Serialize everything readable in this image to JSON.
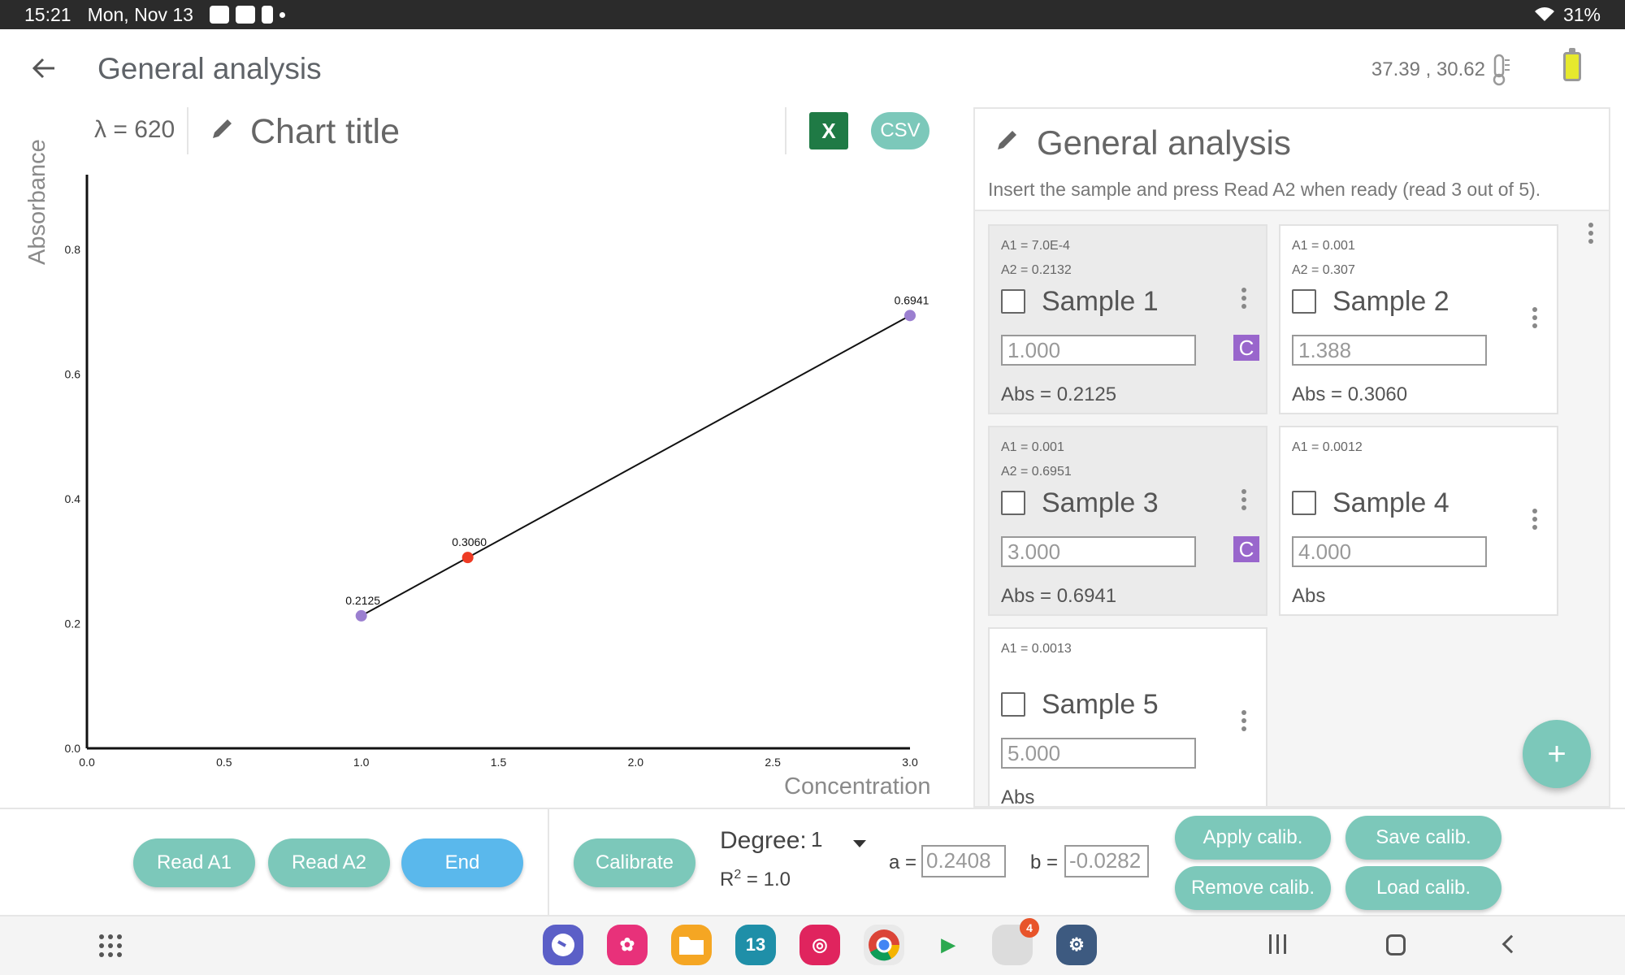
{
  "status_bar": {
    "time": "15:21",
    "date": "Mon, Nov 13",
    "battery": "31%",
    "icons": [
      "gallery-icon",
      "youtube-icon",
      "notification-icon"
    ]
  },
  "app_bar": {
    "title": "General analysis",
    "coords": "37.39 ,  30.62",
    "icons": [
      "back-arrow-icon",
      "thermometer-icon",
      "battery-icon"
    ]
  },
  "chart_header": {
    "lambda": "λ = 620",
    "title": "Chart title",
    "excel_label": "X",
    "csv_label": "CSV"
  },
  "chart_data": {
    "type": "scatter",
    "title": "",
    "xlabel": "Concentration",
    "ylabel": "Absorbance",
    "xlim": [
      0.0,
      3.0
    ],
    "ylim": [
      0.0,
      0.92
    ],
    "xticks": [
      "0.0",
      "0.5",
      "1.0",
      "1.5",
      "2.0",
      "2.5",
      "3.0"
    ],
    "yticks": [
      "0.0",
      "0.2",
      "0.4",
      "0.6",
      "0.8"
    ],
    "grid": false,
    "series": [
      {
        "x": [
          1.0,
          1.388,
          3.0
        ],
        "y": [
          0.2125,
          0.306,
          0.6941
        ],
        "labels": [
          "0.2125",
          "0.3060",
          "0.6941"
        ],
        "colors": [
          "#9b7fd0",
          "#ee3b24",
          "#9b7fd0"
        ]
      }
    ],
    "fit_line": {
      "x": [
        1.0,
        3.0
      ],
      "y": [
        0.2125,
        0.6941
      ],
      "color": "#111111"
    }
  },
  "panel": {
    "title": "General analysis",
    "subtitle": "Insert the sample and press Read A2 when ready (read 3 out of 5).",
    "samples": [
      {
        "a1": "A1 = 7.0E-4",
        "a2": "A2 = 0.2132",
        "name": "Sample 1",
        "conc": "1.000",
        "badge": "C",
        "abs": "Abs = 0.2125"
      },
      {
        "a1": "A1 = 0.001",
        "a2": "A2 = 0.307",
        "name": "Sample 2",
        "conc": "1.388",
        "badge": "",
        "abs": "Abs = 0.3060"
      },
      {
        "a1": "A1 = 0.001",
        "a2": "A2 = 0.6951",
        "name": "Sample 3",
        "conc": "3.000",
        "badge": "C",
        "abs": "Abs = 0.6941"
      },
      {
        "a1": "A1 = 0.0012",
        "a2": "",
        "name": "Sample 4",
        "conc": "4.000",
        "badge": "",
        "abs": "Abs"
      },
      {
        "a1": "A1 = 0.0013",
        "a2": "",
        "name": "Sample 5",
        "conc": "5.000",
        "badge": "",
        "abs": "Abs"
      }
    ],
    "fab_label": "+"
  },
  "toolbar": {
    "read_a1": "Read A1",
    "read_a2": "Read A2",
    "end": "End",
    "calibrate": "Calibrate",
    "degree_label": "Degree:",
    "degree_value": "1",
    "r2_prefix": "R",
    "r2_sup": "2",
    "r2_value": " = 1.0",
    "a_label": "a =",
    "a_value": "0.2408",
    "b_label": "b =",
    "b_value": "-0.0282",
    "apply_calib": "Apply calib.",
    "save_calib": "Save calib.",
    "remove_calib": "Remove calib.",
    "load_calib": "Load calib."
  },
  "nav_bar": {
    "dock": [
      {
        "name": "messages-app-icon",
        "color": "#5b5fc7",
        "glyph": ""
      },
      {
        "name": "blossom-app-icon",
        "color": "#e8317a",
        "glyph": "✿"
      },
      {
        "name": "files-app-icon",
        "color": "#f5a623",
        "glyph": ""
      },
      {
        "name": "calendar-app-icon",
        "color": "#1f8fa8",
        "glyph": "13"
      },
      {
        "name": "camera-app-icon",
        "color": "#e0245e",
        "glyph": "◎"
      },
      {
        "name": "chrome-app-icon",
        "color": "#e9e9e9",
        "glyph": ""
      },
      {
        "name": "play-store-app-icon",
        "color": "#f4f4f4",
        "glyph": "▶"
      },
      {
        "name": "google-folder-icon",
        "color": "#dcdcdc",
        "glyph": "",
        "badge": "4"
      },
      {
        "name": "settings-app-icon",
        "color": "#3d5a80",
        "glyph": "⚙"
      }
    ]
  }
}
